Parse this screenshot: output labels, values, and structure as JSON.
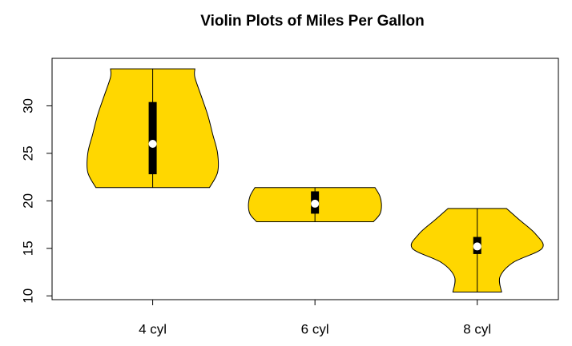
{
  "chart_data": {
    "type": "violin",
    "title": "Violin Plots of Miles Per Gallon",
    "categories": [
      "4 cyl",
      "6 cyl",
      "8 cyl"
    ],
    "color": "#ffd700",
    "groups": [
      {
        "min": 21.4,
        "q1": 22.8,
        "median": 26,
        "q3": 30.4,
        "max": 33.9,
        "density_y": [
          21.4,
          23,
          25,
          27,
          29,
          31,
          33,
          33.9
        ],
        "density_w": [
          0.35,
          0.4,
          0.4,
          0.37,
          0.34,
          0.3,
          0.26,
          0.26
        ]
      },
      {
        "min": 17.8,
        "q1": 18.65,
        "median": 19.7,
        "q3": 21,
        "max": 21.4,
        "density_y": [
          17.8,
          18.6,
          19.5,
          20.5,
          21.4
        ],
        "density_w": [
          0.36,
          0.4,
          0.41,
          0.4,
          0.37
        ]
      },
      {
        "min": 10.4,
        "q1": 14.4,
        "median": 15.2,
        "q3": 16.2,
        "max": 19.2,
        "density_y": [
          10.4,
          12,
          13.5,
          15,
          16.5,
          18,
          19.2
        ],
        "density_w": [
          0.15,
          0.14,
          0.22,
          0.4,
          0.36,
          0.26,
          0.18
        ]
      }
    ],
    "xlim": [
      0.38,
      3.5
    ],
    "ylim": [
      9.6,
      35
    ],
    "yticks": [
      10,
      15,
      20,
      25,
      30
    ]
  }
}
